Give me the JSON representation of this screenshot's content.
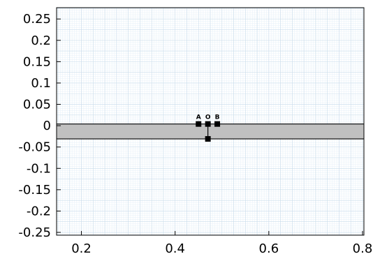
{
  "chart_data": {
    "type": "scatter",
    "title": "",
    "xlabel": "",
    "ylabel": "",
    "xlim": [
      0.147,
      0.803
    ],
    "ylim": [
      -0.2565,
      0.2765
    ],
    "x_ticks": [
      0.2,
      0.4,
      0.6,
      0.8
    ],
    "x_tick_labels": [
      "0.2",
      "0.4",
      "0.6",
      "0.8"
    ],
    "y_ticks": [
      0.25,
      0.2,
      0.15,
      0.1,
      0.05,
      0,
      -0.05,
      -0.1,
      -0.15,
      -0.2,
      -0.25
    ],
    "y_tick_labels": [
      "0.25",
      "0.2",
      "0.15",
      "0.1",
      "0.05",
      "0",
      "-0.05",
      "-0.1",
      "-0.15",
      "-0.2",
      "-0.25"
    ],
    "grid": true,
    "colors": {
      "grid_minor": "#e6f0f8",
      "grid_major": "#c9dceb",
      "slab_fill": "#c0c0c0",
      "line": "#000000",
      "axis": "#000000"
    },
    "slab": {
      "y_top": 0.004,
      "y_bottom": -0.031,
      "x_from": 0.147,
      "x_to": 0.803
    },
    "segments": [
      {
        "x": [
          0.47,
          0.47
        ],
        "y": [
          0.004,
          -0.031
        ]
      }
    ],
    "points": [
      {
        "label": "A",
        "x": 0.45,
        "y": 0.004
      },
      {
        "label": "O",
        "x": 0.47,
        "y": 0.004
      },
      {
        "label": "B",
        "x": 0.49,
        "y": 0.004
      },
      {
        "label": "",
        "x": 0.47,
        "y": -0.031
      }
    ]
  }
}
